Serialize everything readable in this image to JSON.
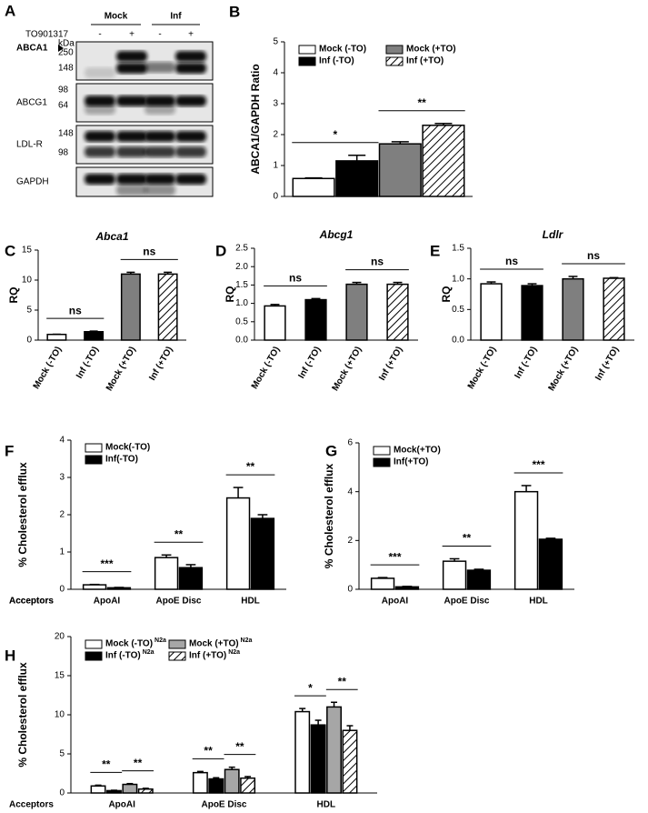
{
  "blot": {
    "label": "A",
    "groups": [
      "Mock",
      "Inf"
    ],
    "treatment": "TO901317",
    "signs": [
      "-",
      "+",
      "-",
      "+"
    ],
    "kda": "kDa",
    "rows": [
      {
        "name": "ABCA1",
        "markers": [
          "250",
          "148"
        ]
      },
      {
        "name": "ABCG1",
        "markers": [
          "98",
          "64"
        ]
      },
      {
        "name": "LDL-R",
        "markers": [
          "148",
          "98"
        ]
      },
      {
        "name": "GAPDH",
        "markers": []
      }
    ]
  },
  "chart_data": [
    {
      "type": "bar",
      "label": "B",
      "ylabel": "ABCA1/GAPDH Ratio",
      "ylim": [
        0,
        5
      ],
      "yticks": [
        0,
        1,
        2,
        3,
        4,
        5
      ],
      "series": [
        {
          "name": "Mock (-TO)",
          "color": "#ffffff",
          "values": [
            0.58
          ],
          "errors": [
            0.02
          ]
        },
        {
          "name": "Inf (-TO)",
          "color": "#000000",
          "values": [
            1.15
          ],
          "errors": [
            0.18
          ]
        },
        {
          "name": "Mock (+TO)",
          "color": "#7f7f7f",
          "values": [
            1.7
          ],
          "errors": [
            0.07
          ]
        },
        {
          "name": "Inf (+TO)",
          "color": "#ffffff",
          "hatch": true,
          "values": [
            2.3
          ],
          "errors": [
            0.06
          ]
        }
      ],
      "annotations": [
        "*",
        "**"
      ]
    },
    {
      "type": "bar",
      "label": "C",
      "title": "Abca1",
      "ylabel": "RQ",
      "ylim": [
        0,
        15
      ],
      "yticks": [
        0,
        5,
        10,
        15
      ],
      "categories": [
        "Mock (-TO)",
        "Inf (-TO)",
        "Mock (+TO)",
        "Inf (+TO)"
      ],
      "values": [
        0.95,
        1.4,
        11.0,
        11.0
      ],
      "errors": [
        0.03,
        0.1,
        0.3,
        0.3
      ],
      "colors": [
        "#ffffff",
        "#000000",
        "#7f7f7f",
        "#ffffff"
      ],
      "hatched": [
        false,
        false,
        false,
        true
      ],
      "annotations": [
        "ns",
        "ns"
      ]
    },
    {
      "type": "bar",
      "label": "D",
      "title": "Abcg1",
      "ylabel": "RQ",
      "ylim": [
        0,
        2.5
      ],
      "yticks": [
        {
          "value": 0,
          "label": "0.0"
        },
        0.5,
        {
          "value": 1,
          "label": "1.0"
        },
        1.5,
        {
          "value": 2,
          "label": "2.0"
        },
        2.5
      ],
      "categories": [
        "Mock (-TO)",
        "Inf (-TO)",
        "Mock (+TO)",
        "Inf (+TO)"
      ],
      "values": [
        0.93,
        1.1,
        1.52,
        1.52
      ],
      "errors": [
        0.04,
        0.03,
        0.05,
        0.05
      ],
      "colors": [
        "#ffffff",
        "#000000",
        "#7f7f7f",
        "#ffffff"
      ],
      "hatched": [
        false,
        false,
        false,
        true
      ],
      "annotations": [
        "ns",
        "ns"
      ]
    },
    {
      "type": "bar",
      "label": "E",
      "title": "Ldlr",
      "ylabel": "RQ",
      "ylim": [
        0,
        1.5
      ],
      "yticks": [
        {
          "value": 0,
          "label": "0.0"
        },
        0.5,
        {
          "value": 1,
          "label": "1.0"
        },
        1.5
      ],
      "categories": [
        "Mock (-TO)",
        "Inf (-TO)",
        "Mock (+TO)",
        "Inf (+TO)"
      ],
      "values": [
        0.92,
        0.89,
        1.0,
        1.01
      ],
      "errors": [
        0.03,
        0.03,
        0.04,
        0.01
      ],
      "colors": [
        "#ffffff",
        "#000000",
        "#7f7f7f",
        "#ffffff"
      ],
      "hatched": [
        false,
        false,
        false,
        true
      ],
      "annotations": [
        "ns",
        "ns"
      ]
    },
    {
      "type": "bar",
      "label": "F",
      "ylabel": "% Cholesterol efflux",
      "xlabel": "Acceptors",
      "ylim": [
        0,
        4
      ],
      "yticks": [
        0,
        1,
        2,
        3,
        4
      ],
      "categories": [
        "ApoAI",
        "ApoE Disc",
        "HDL"
      ],
      "series": [
        {
          "name": "Mock(-TO)",
          "color": "#ffffff",
          "values": [
            0.12,
            0.85,
            2.45
          ],
          "errors": [
            0.01,
            0.07,
            0.28
          ]
        },
        {
          "name": "Inf(-TO)",
          "color": "#000000",
          "values": [
            0.04,
            0.58,
            1.9
          ],
          "errors": [
            0.01,
            0.08,
            0.1
          ]
        }
      ],
      "annotations": [
        "***",
        "**",
        "**"
      ]
    },
    {
      "type": "bar",
      "label": "G",
      "ylabel": "% Cholesterol efflux",
      "xlabel": "Acceptors",
      "ylim": [
        0,
        6
      ],
      "yticks": [
        0,
        2,
        4,
        6
      ],
      "categories": [
        "ApoAI",
        "ApoE Disc",
        "HDL"
      ],
      "series": [
        {
          "name": "Mock(+TO)",
          "color": "#ffffff",
          "values": [
            0.45,
            1.15,
            4.0
          ],
          "errors": [
            0.03,
            0.1,
            0.25
          ]
        },
        {
          "name": "Inf(+TO)",
          "color": "#000000",
          "values": [
            0.1,
            0.78,
            2.05
          ],
          "errors": [
            0.02,
            0.04,
            0.04
          ]
        }
      ],
      "annotations": [
        "***",
        "**",
        "***"
      ]
    },
    {
      "type": "bar",
      "label": "H",
      "ylabel": "% Cholesterol efflux",
      "xlabel": "Acceptors",
      "ylim": [
        0,
        20
      ],
      "yticks": [
        0,
        5,
        10,
        15,
        20
      ],
      "categories": [
        "ApoAI",
        "ApoE Disc",
        "HDL"
      ],
      "series": [
        {
          "name": "Mock (-TO)",
          "superscript": "N2a",
          "color": "#ffffff",
          "values": [
            0.9,
            2.6,
            10.4
          ],
          "errors": [
            0.1,
            0.15,
            0.4
          ]
        },
        {
          "name": "Inf (-TO)",
          "superscript": "N2a",
          "color": "#000000",
          "values": [
            0.3,
            1.8,
            8.7
          ],
          "errors": [
            0.05,
            0.15,
            0.6
          ]
        },
        {
          "name": "Mock (+TO)",
          "superscript": "N2a",
          "color": "#a6a6a6",
          "values": [
            1.1,
            3.0,
            11.0
          ],
          "errors": [
            0.1,
            0.3,
            0.6
          ]
        },
        {
          "name": "Inf (+TO)",
          "superscript": "N2a",
          "color": "#ffffff",
          "hatch": true,
          "values": [
            0.5,
            1.9,
            8.0
          ],
          "errors": [
            0.1,
            0.2,
            0.6
          ]
        }
      ],
      "annotations": [
        "**",
        "**",
        "**",
        "**",
        "*",
        "**"
      ]
    }
  ]
}
